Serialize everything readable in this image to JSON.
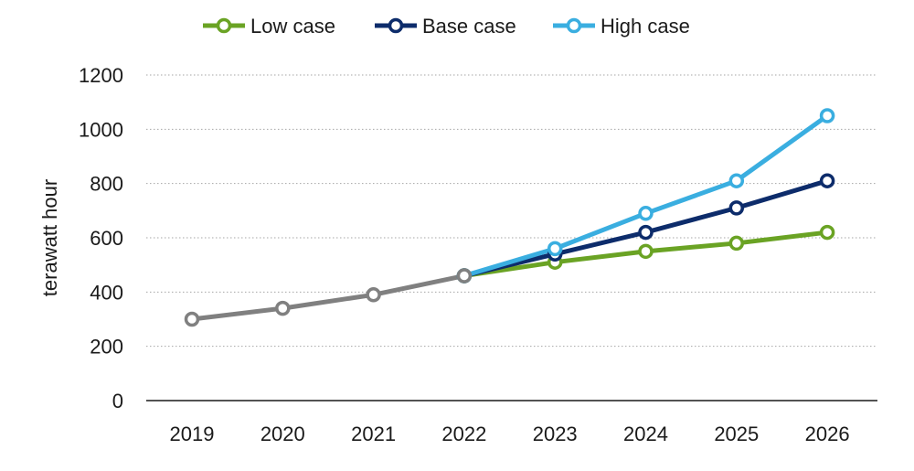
{
  "chart_data": {
    "type": "line",
    "title": "",
    "xlabel": "",
    "ylabel": "terawatt hour",
    "categories": [
      "2019",
      "2020",
      "2021",
      "2022",
      "2023",
      "2024",
      "2025",
      "2026"
    ],
    "ylim": [
      0,
      1200
    ],
    "yticks": [
      0,
      200,
      400,
      600,
      800,
      1000,
      1200
    ],
    "grid": "horizontal dotted",
    "legend_position": "top-center",
    "historical": {
      "color": "#808080",
      "values": [
        300,
        340,
        390,
        460,
        null,
        null,
        null,
        null
      ]
    },
    "series": [
      {
        "name": "Low case",
        "color": "#6aa324",
        "values": [
          null,
          null,
          null,
          460,
          510,
          550,
          580,
          620
        ]
      },
      {
        "name": "Base case",
        "color": "#0d2c6b",
        "values": [
          null,
          null,
          null,
          460,
          540,
          620,
          710,
          810
        ]
      },
      {
        "name": "High case",
        "color": "#3aaee0",
        "values": [
          null,
          null,
          null,
          460,
          560,
          690,
          810,
          1050
        ]
      }
    ]
  }
}
